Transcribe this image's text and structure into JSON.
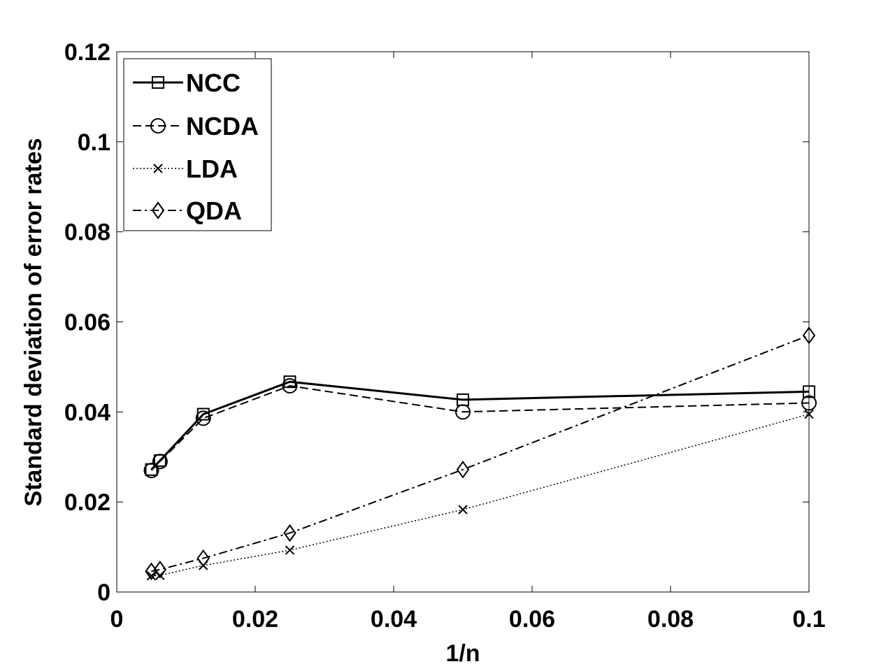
{
  "chart_data": {
    "type": "line",
    "title": "",
    "xlabel": "1/n",
    "ylabel": "Standard deviation of  error rates",
    "xlim": [
      0,
      0.1
    ],
    "ylim": [
      0,
      0.12
    ],
    "xticks": [
      0,
      0.02,
      0.04,
      0.06,
      0.08,
      0.1
    ],
    "xtick_labels": [
      "0",
      "0.02",
      "0.04",
      "0.06",
      "0.08",
      "0.1"
    ],
    "yticks": [
      0,
      0.02,
      0.04,
      0.06,
      0.08,
      0.1,
      0.12
    ],
    "ytick_labels": [
      "0",
      "0.02",
      "0.04",
      "0.06",
      "0.08",
      "0.1",
      "0.12"
    ],
    "grid": false,
    "legend_position": "top-left",
    "x": [
      0.005,
      0.00625,
      0.0125,
      0.025,
      0.05,
      0.1
    ],
    "series": [
      {
        "name": "NCC",
        "values": [
          0.0272,
          0.0292,
          0.0395,
          0.0467,
          0.0427,
          0.0445
        ],
        "marker": "square",
        "dash": "solid"
      },
      {
        "name": "NCDA",
        "values": [
          0.027,
          0.029,
          0.0386,
          0.0458,
          0.04,
          0.042
        ],
        "marker": "circle",
        "dash": "dashed"
      },
      {
        "name": "LDA",
        "values": [
          0.0036,
          0.0037,
          0.0059,
          0.0093,
          0.0183,
          0.0395
        ],
        "marker": "x",
        "dash": "dotted"
      },
      {
        "name": "QDA",
        "values": [
          0.0046,
          0.005,
          0.0075,
          0.0131,
          0.0272,
          0.057
        ],
        "marker": "diamond",
        "dash": "dashdot"
      }
    ]
  }
}
